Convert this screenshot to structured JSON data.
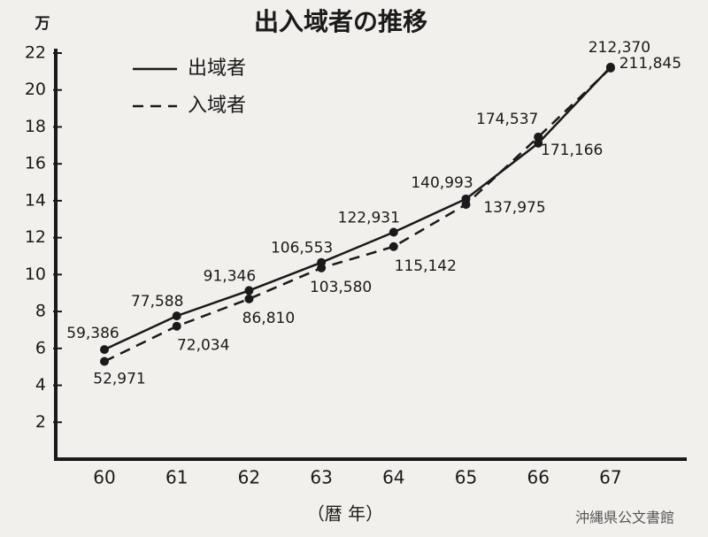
{
  "chart_data": {
    "type": "line",
    "title": "出入域者の推移",
    "y_label": "万",
    "x_label": "（暦 年）",
    "annotation": "沖縄県公文書館",
    "categories": [
      "60",
      "61",
      "62",
      "63",
      "64",
      "65",
      "66",
      "67"
    ],
    "ylim": [
      0,
      22
    ],
    "yticks": [
      2,
      4,
      6,
      8,
      10,
      12,
      14,
      16,
      18,
      20,
      22
    ],
    "series": [
      {
        "name": "出域者",
        "color": "#1a1a1a",
        "line_style": "solid",
        "values": [
          5.9386,
          7.7588,
          9.1346,
          10.6553,
          12.2931,
          14.0993,
          17.1166,
          21.237
        ],
        "value_labels": [
          "59,386",
          "77,588",
          "91,346",
          "106,553",
          "122,931",
          "140,993",
          "171,166",
          "212,370"
        ]
      },
      {
        "name": "入域者",
        "color": "#1a1a1a",
        "line_style": "dashed",
        "values": [
          5.2971,
          7.2034,
          8.681,
          10.358,
          11.5142,
          13.7975,
          17.4537,
          21.1845
        ],
        "value_labels": [
          "52,971",
          "72,034",
          "86,810",
          "103,580",
          "115,142",
          "137,975",
          "174,537",
          "211,845"
        ]
      }
    ]
  }
}
